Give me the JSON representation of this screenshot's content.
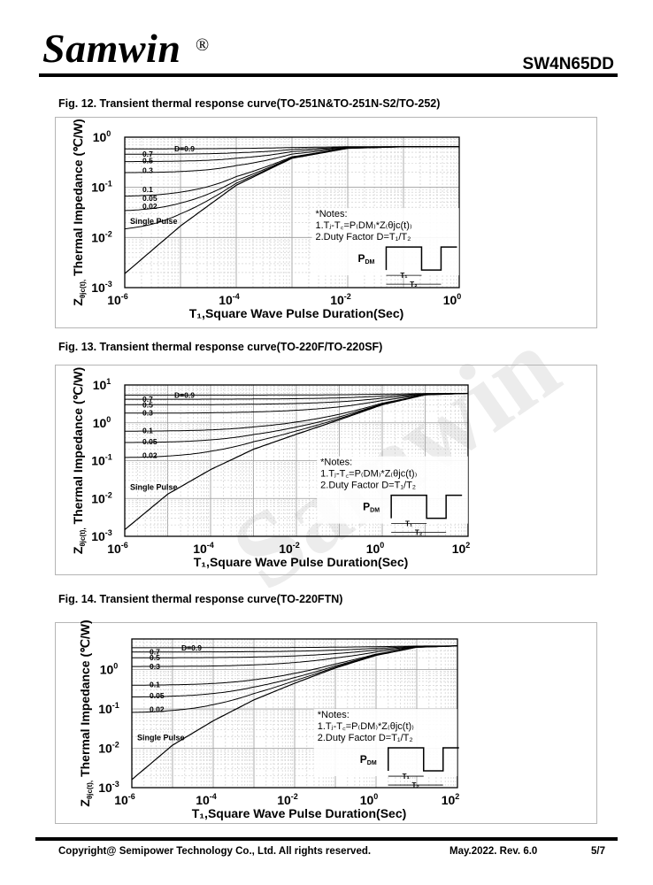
{
  "header": {
    "brand": "Samwin",
    "brand_mark": "®",
    "part_number": "SW4N65DD"
  },
  "figures": [
    {
      "title": "Fig. 12. Transient thermal response curve(TO-251N&TO-251N-S2/TO-252)"
    },
    {
      "title": "Fig. 13. Transient thermal response curve(TO-220F/TO-220SF)"
    },
    {
      "title": "Fig. 14. Transient thermal response curve(TO-220FTN)"
    }
  ],
  "chart_data": [
    {
      "type": "line",
      "title": "",
      "xlabel": "T₁,Square Wave Pulse Duration(Sec)",
      "ylabel": "Thermal Impedance (℃/W)",
      "ylabel_symbol": "Z",
      "ylabel_sub": "θjc(t),",
      "x_scale": "log",
      "y_scale": "log",
      "xlim": [
        1e-06,
        1
      ],
      "ylim": [
        0.001,
        1
      ],
      "x_ticks": [
        {
          "v": 1e-06,
          "b": "10",
          "e": "-6"
        },
        {
          "v": 0.0001,
          "b": "10",
          "e": "-4"
        },
        {
          "v": 0.01,
          "b": "10",
          "e": "-2"
        },
        {
          "v": 1,
          "b": "10",
          "e": "0"
        }
      ],
      "y_ticks": [
        {
          "v": 0.001,
          "b": "10",
          "e": "-3"
        },
        {
          "v": 0.01,
          "b": "10",
          "e": "-2"
        },
        {
          "v": 0.1,
          "b": "10",
          "e": "-1"
        },
        {
          "v": 1,
          "b": "10",
          "e": "0"
        }
      ],
      "grid": true,
      "steady_state": 0.65,
      "single_pulse_label": "Single Pulse",
      "single_pulse": {
        "x": [
          1e-06,
          1e-05,
          0.0001,
          0.001,
          0.01,
          0.1,
          1
        ],
        "y": [
          0.0019,
          0.017,
          0.11,
          0.38,
          0.6,
          0.645,
          0.65
        ]
      },
      "series": [
        {
          "name": "D=0.9",
          "d": 0.9
        },
        {
          "name": "0.7",
          "d": 0.7
        },
        {
          "name": "0.5",
          "d": 0.5
        },
        {
          "name": "0.3",
          "d": 0.3
        },
        {
          "name": "0.1",
          "d": 0.1
        },
        {
          "name": "0.05",
          "d": 0.05
        },
        {
          "name": "0.02",
          "d": 0.02
        }
      ],
      "notes": {
        "title": "*Notes:",
        "line1": "1.Tⱼ-T꜀=P₍DM₎*Z₍θjc(t)₎",
        "line2": "2.Duty Factor D=T₁/T₂",
        "pdm": "P",
        "pdm_sub": "DM",
        "t1": "T₁",
        "t2": "T₂"
      }
    },
    {
      "type": "line",
      "title": "",
      "xlabel": "T₁,Square Wave Pulse Duration(Sec)",
      "ylabel": "Thermal Impedance (℃/W)",
      "ylabel_symbol": "Z",
      "ylabel_sub": "θjc(t),",
      "x_scale": "log",
      "y_scale": "log",
      "xlim": [
        1e-06,
        100
      ],
      "ylim": [
        0.001,
        10
      ],
      "x_ticks": [
        {
          "v": 1e-06,
          "b": "10",
          "e": "-6"
        },
        {
          "v": 0.0001,
          "b": "10",
          "e": "-4"
        },
        {
          "v": 0.01,
          "b": "10",
          "e": "-2"
        },
        {
          "v": 1,
          "b": "10",
          "e": "0"
        },
        {
          "v": 100,
          "b": "10",
          "e": "2"
        }
      ],
      "y_ticks": [
        {
          "v": 0.001,
          "b": "10",
          "e": "-3"
        },
        {
          "v": 0.01,
          "b": "10",
          "e": "-2"
        },
        {
          "v": 0.1,
          "b": "10",
          "e": "-1"
        },
        {
          "v": 1,
          "b": "10",
          "e": "0"
        },
        {
          "v": 10,
          "b": "10",
          "e": "1"
        }
      ],
      "grid": true,
      "steady_state": 6.0,
      "single_pulse_label": "Single Pulse",
      "single_pulse": {
        "x": [
          1e-06,
          1e-05,
          0.0001,
          0.001,
          0.01,
          0.1,
          1,
          10,
          100
        ],
        "y": [
          0.0015,
          0.013,
          0.058,
          0.2,
          0.5,
          1.2,
          3.0,
          5.5,
          6.0
        ]
      },
      "series": [
        {
          "name": "D=0.9",
          "d": 0.9
        },
        {
          "name": "0.7",
          "d": 0.7
        },
        {
          "name": "0.5",
          "d": 0.5
        },
        {
          "name": "0.3",
          "d": 0.3
        },
        {
          "name": "0.1",
          "d": 0.1
        },
        {
          "name": "0.05",
          "d": 0.05
        },
        {
          "name": "0.02",
          "d": 0.02
        }
      ],
      "notes": {
        "title": "*Notes:",
        "line1": "1.Tⱼ-T꜀=P₍DM₎*Z₍θjc(t)₎",
        "line2": "2.Duty Factor D=T₁/T₂",
        "pdm": "P",
        "pdm_sub": "DM",
        "t1": "T₁",
        "t2": "T₂"
      }
    },
    {
      "type": "line",
      "title": "",
      "xlabel": "T₁,Square Wave Pulse Duration(Sec)",
      "ylabel": "Thermal Impedance (℃/W)",
      "ylabel_symbol": "Z",
      "ylabel_sub": "θjc(t),",
      "x_scale": "log",
      "y_scale": "log",
      "xlim": [
        1e-06,
        100
      ],
      "ylim": [
        0.001,
        6
      ],
      "x_ticks": [
        {
          "v": 1e-06,
          "b": "10",
          "e": "-6"
        },
        {
          "v": 0.0001,
          "b": "10",
          "e": "-4"
        },
        {
          "v": 0.01,
          "b": "10",
          "e": "-2"
        },
        {
          "v": 1,
          "b": "10",
          "e": "0"
        },
        {
          "v": 100,
          "b": "10",
          "e": "2"
        }
      ],
      "y_ticks": [
        {
          "v": 0.001,
          "b": "10",
          "e": "-3"
        },
        {
          "v": 0.01,
          "b": "10",
          "e": "-2"
        },
        {
          "v": 0.1,
          "b": "10",
          "e": "-1"
        },
        {
          "v": 1,
          "b": "10",
          "e": "0"
        }
      ],
      "grid": true,
      "steady_state": 4.0,
      "single_pulse_label": "Single Pulse",
      "single_pulse": {
        "x": [
          1e-06,
          1e-05,
          0.0001,
          0.001,
          0.01,
          0.1,
          1,
          10,
          100
        ],
        "y": [
          0.0016,
          0.012,
          0.05,
          0.17,
          0.45,
          1.1,
          2.3,
          3.7,
          4.0
        ]
      },
      "series": [
        {
          "name": "D=0.9",
          "d": 0.9
        },
        {
          "name": "0.7",
          "d": 0.7
        },
        {
          "name": "0.5",
          "d": 0.5
        },
        {
          "name": "0.3",
          "d": 0.3
        },
        {
          "name": "0.1",
          "d": 0.1
        },
        {
          "name": "0.05",
          "d": 0.05
        },
        {
          "name": "0.02",
          "d": 0.02
        }
      ],
      "notes": {
        "title": "*Notes:",
        "line1": "1.Tⱼ-T꜀=P₍DM₎*Z₍θjc(t)₎",
        "line2": "2.Duty Factor D=T₁/T₂",
        "pdm": "P",
        "pdm_sub": "DM",
        "t1": "T₁",
        "t2": "T₂"
      }
    }
  ],
  "footer": {
    "copyright": "Copyright@ Semipower Technology Co., Ltd. All rights reserved.",
    "revision": "May.2022. Rev. 6.0",
    "page": "5/7"
  }
}
